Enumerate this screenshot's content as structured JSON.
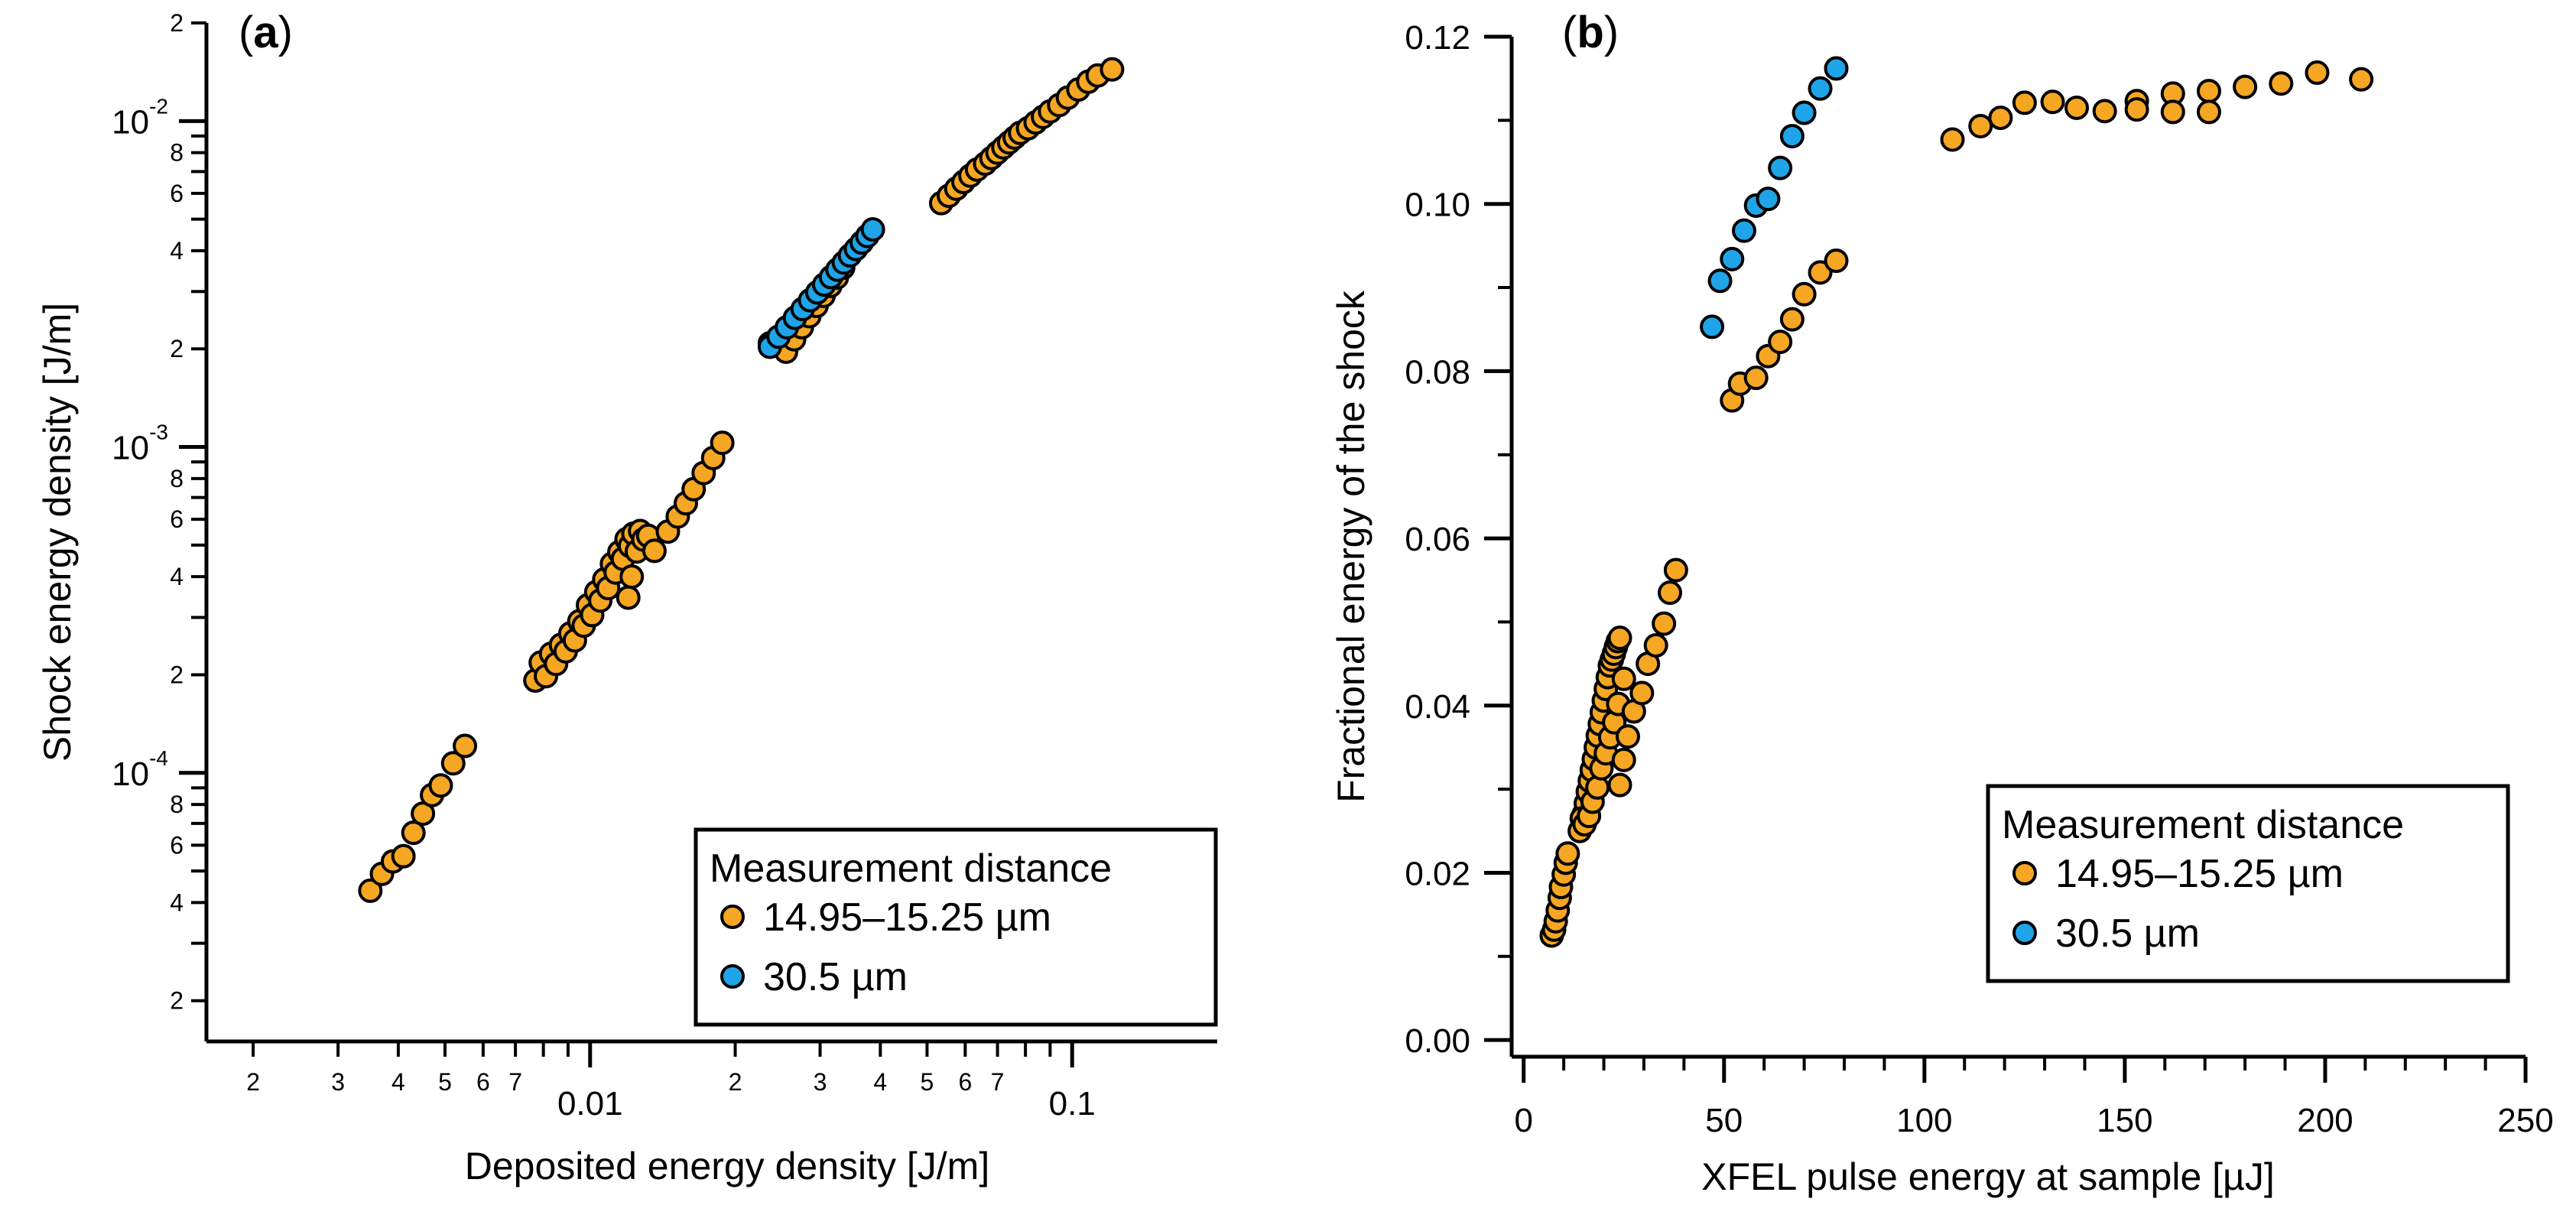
{
  "colors": {
    "orange": "#F5A623",
    "blue": "#1FA4E8",
    "stroke": "#000000"
  },
  "chart_data": [
    {
      "type": "scatter",
      "panel_label": "a",
      "xscale": "log",
      "yscale": "log",
      "xlabel": "Deposited energy density [J/m]",
      "ylabel": "Shock energy density [J/m]",
      "xlim": [
        0.0016,
        0.2
      ],
      "ylim": [
        1.5e-05,
        0.02
      ],
      "x_major_ticks": [
        {
          "value": 0.01,
          "label": "0.01"
        },
        {
          "value": 0.1,
          "label": "0.1"
        }
      ],
      "x_minor_ticks": [
        {
          "value": 0.002,
          "label": "2"
        },
        {
          "value": 0.003,
          "label": "3"
        },
        {
          "value": 0.004,
          "label": "4"
        },
        {
          "value": 0.005,
          "label": "5"
        },
        {
          "value": 0.006,
          "label": "6"
        },
        {
          "value": 0.007,
          "label": "7"
        },
        {
          "value": 0.008,
          "label": ""
        },
        {
          "value": 0.009,
          "label": ""
        },
        {
          "value": 0.02,
          "label": "2"
        },
        {
          "value": 0.03,
          "label": "3"
        },
        {
          "value": 0.04,
          "label": "4"
        },
        {
          "value": 0.05,
          "label": "5"
        },
        {
          "value": 0.06,
          "label": "6"
        },
        {
          "value": 0.07,
          "label": "7"
        },
        {
          "value": 0.08,
          "label": ""
        },
        {
          "value": 0.09,
          "label": ""
        }
      ],
      "y_major_ticks": [
        {
          "value": 0.0001,
          "base": "10",
          "exp": "-4"
        },
        {
          "value": 0.001,
          "base": "10",
          "exp": "-3"
        },
        {
          "value": 0.01,
          "base": "10",
          "exp": "-2"
        }
      ],
      "y_minor_ticks": [
        {
          "value": 2e-05,
          "label": "2"
        },
        {
          "value": 3e-05,
          "label": ""
        },
        {
          "value": 4e-05,
          "label": "4"
        },
        {
          "value": 5e-05,
          "label": ""
        },
        {
          "value": 6e-05,
          "label": "6"
        },
        {
          "value": 7e-05,
          "label": ""
        },
        {
          "value": 8e-05,
          "label": "8"
        },
        {
          "value": 9e-05,
          "label": ""
        },
        {
          "value": 0.0002,
          "label": "2"
        },
        {
          "value": 0.0003,
          "label": ""
        },
        {
          "value": 0.0004,
          "label": "4"
        },
        {
          "value": 0.0005,
          "label": ""
        },
        {
          "value": 0.0006,
          "label": "6"
        },
        {
          "value": 0.0007,
          "label": ""
        },
        {
          "value": 0.0008,
          "label": "8"
        },
        {
          "value": 0.0009,
          "label": ""
        },
        {
          "value": 0.002,
          "label": "2"
        },
        {
          "value": 0.003,
          "label": ""
        },
        {
          "value": 0.004,
          "label": "4"
        },
        {
          "value": 0.005,
          "label": ""
        },
        {
          "value": 0.006,
          "label": "6"
        },
        {
          "value": 0.007,
          "label": ""
        },
        {
          "value": 0.008,
          "label": "8"
        },
        {
          "value": 0.009,
          "label": ""
        },
        {
          "value": 0.02,
          "label": "2"
        }
      ],
      "legend": {
        "title": "Measurement distance",
        "position": "bottom-right"
      },
      "series": [
        {
          "name": "14.95–15.25 µm",
          "color": "#F5A623",
          "points": [
            [
              0.0035,
              4.35e-05
            ],
            [
              0.0037,
              4.9e-05
            ],
            [
              0.0039,
              5.35e-05
            ],
            [
              0.0041,
              5.55e-05
            ],
            [
              0.0043,
              6.55e-05
            ],
            [
              0.0045,
              7.5e-05
            ],
            [
              0.0047,
              8.55e-05
            ],
            [
              0.0049,
              9.15e-05
            ],
            [
              0.0052,
              0.000107
            ],
            [
              0.0055,
              0.000121
            ],
            [
              0.0077,
              0.000192
            ],
            [
              0.0079,
              0.000218
            ],
            [
              0.0081,
              0.000198
            ],
            [
              0.0083,
              0.000232
            ],
            [
              0.0085,
              0.000216
            ],
            [
              0.0087,
              0.000247
            ],
            [
              0.0089,
              0.000236
            ],
            [
              0.0091,
              0.000268
            ],
            [
              0.0093,
              0.000255
            ],
            [
              0.0095,
              0.000292
            ],
            [
              0.0097,
              0.000283
            ],
            [
              0.0099,
              0.000327
            ],
            [
              0.0101,
              0.000305
            ],
            [
              0.0103,
              0.000359
            ],
            [
              0.0105,
              0.000338
            ],
            [
              0.0107,
              0.000392
            ],
            [
              0.0109,
              0.000369
            ],
            [
              0.0111,
              0.000438
            ],
            [
              0.0113,
              0.000412
            ],
            [
              0.0115,
              0.000476
            ],
            [
              0.0117,
              0.000454
            ],
            [
              0.0119,
              0.000521
            ],
            [
              0.0121,
              0.000497
            ],
            [
              0.0123,
              0.000542
            ],
            [
              0.0125,
              0.000478
            ],
            [
              0.0127,
              0.000552
            ],
            [
              0.0129,
              0.00052
            ],
            [
              0.012,
              0.000345
            ],
            [
              0.0122,
              0.0004
            ],
            [
              0.0132,
              0.000534
            ],
            [
              0.0136,
              0.00048
            ],
            [
              0.0145,
              0.00055
            ],
            [
              0.0152,
              0.000612
            ],
            [
              0.0158,
              0.000672
            ],
            [
              0.0164,
              0.000742
            ],
            [
              0.0172,
              0.000832
            ],
            [
              0.018,
              0.000925
            ],
            [
              0.0188,
              0.00103
            ],
            [
              0.0236,
              0.00208
            ],
            [
              0.0255,
              0.00196
            ],
            [
              0.0265,
              0.00214
            ],
            [
              0.0275,
              0.00233
            ],
            [
              0.0285,
              0.00252
            ],
            [
              0.0295,
              0.00271
            ],
            [
              0.0305,
              0.00291
            ],
            [
              0.0315,
              0.00312
            ],
            [
              0.0325,
              0.00331
            ],
            [
              0.0335,
              0.00355
            ],
            [
              0.0535,
              0.0056
            ],
            [
              0.0555,
              0.0059
            ],
            [
              0.0575,
              0.0062
            ],
            [
              0.0595,
              0.0065
            ],
            [
              0.0615,
              0.0068
            ],
            [
              0.0635,
              0.0071
            ],
            [
              0.066,
              0.0074
            ],
            [
              0.068,
              0.0077
            ],
            [
              0.07,
              0.008
            ],
            [
              0.072,
              0.0083
            ],
            [
              0.074,
              0.0086
            ],
            [
              0.076,
              0.0089
            ],
            [
              0.078,
              0.0092
            ],
            [
              0.081,
              0.0095
            ],
            [
              0.084,
              0.0099
            ],
            [
              0.087,
              0.0103
            ],
            [
              0.09,
              0.0107
            ],
            [
              0.094,
              0.0112
            ],
            [
              0.098,
              0.0118
            ],
            [
              0.103,
              0.0125
            ],
            [
              0.108,
              0.0132
            ],
            [
              0.113,
              0.0138
            ],
            [
              0.121,
              0.0144
            ]
          ]
        },
        {
          "name": "30.5 µm",
          "color": "#1FA4E8",
          "points": [
            [
              0.0236,
              0.00203
            ],
            [
              0.0246,
              0.00218
            ],
            [
              0.0256,
              0.00233
            ],
            [
              0.0266,
              0.00249
            ],
            [
              0.0276,
              0.00265
            ],
            [
              0.0286,
              0.00282
            ],
            [
              0.0296,
              0.00298
            ],
            [
              0.0306,
              0.00315
            ],
            [
              0.0316,
              0.00332
            ],
            [
              0.0326,
              0.0035
            ],
            [
              0.0336,
              0.00368
            ],
            [
              0.0346,
              0.00387
            ],
            [
              0.0356,
              0.00405
            ],
            [
              0.0366,
              0.00424
            ],
            [
              0.0376,
              0.00444
            ],
            [
              0.0386,
              0.00465
            ]
          ]
        }
      ]
    },
    {
      "type": "scatter",
      "panel_label": "b",
      "xscale": "linear",
      "yscale": "linear",
      "xlabel": "XFEL pulse energy at sample [µJ]",
      "ylabel": "Fractional energy of the shock",
      "xlim": [
        -3,
        250
      ],
      "ylim": [
        -0.002,
        0.12
      ],
      "x_ticks": [
        {
          "value": 0,
          "label": "0"
        },
        {
          "value": 50,
          "label": "50"
        },
        {
          "value": 100,
          "label": "100"
        },
        {
          "value": 150,
          "label": "150"
        },
        {
          "value": 200,
          "label": "200"
        },
        {
          "value": 250,
          "label": "250"
        }
      ],
      "x_minor_ticks": [
        10,
        20,
        30,
        40,
        60,
        70,
        80,
        90,
        110,
        120,
        130,
        140,
        160,
        170,
        180,
        190,
        210,
        220,
        230,
        240
      ],
      "y_ticks": [
        {
          "value": 0,
          "label": "0.00"
        },
        {
          "value": 0.02,
          "label": "0.02"
        },
        {
          "value": 0.04,
          "label": "0.04"
        },
        {
          "value": 0.06,
          "label": "0.06"
        },
        {
          "value": 0.08,
          "label": "0.08"
        },
        {
          "value": 0.1,
          "label": "0.10"
        },
        {
          "value": 0.12,
          "label": "0.12"
        }
      ],
      "y_minor_ticks": [
        0.01,
        0.03,
        0.05,
        0.07,
        0.09,
        0.11
      ],
      "legend": {
        "title": "Measurement distance",
        "position": "lower-right"
      },
      "series": [
        {
          "name": "14.95–15.25 µm",
          "color": "#F5A623",
          "points": [
            [
              7,
              0.0125
            ],
            [
              7.6,
              0.0132
            ],
            [
              8,
              0.0142
            ],
            [
              8.5,
              0.0155
            ],
            [
              9,
              0.017
            ],
            [
              9.3,
              0.0183
            ],
            [
              10,
              0.0198
            ],
            [
              10.5,
              0.0212
            ],
            [
              11,
              0.0223
            ],
            [
              14,
              0.025
            ],
            [
              15,
              0.027
            ],
            [
              15.5,
              0.0283
            ],
            [
              16,
              0.0297
            ],
            [
              16.5,
              0.031
            ],
            [
              17,
              0.0323
            ],
            [
              17.5,
              0.0336
            ],
            [
              18,
              0.035
            ],
            [
              18.5,
              0.0364
            ],
            [
              19,
              0.0378
            ],
            [
              19.5,
              0.0392
            ],
            [
              20,
              0.0406
            ],
            [
              20.5,
              0.042
            ],
            [
              21,
              0.0434
            ],
            [
              21.5,
              0.0448
            ],
            [
              22,
              0.0455
            ],
            [
              22.5,
              0.0462
            ],
            [
              23,
              0.047
            ],
            [
              23.5,
              0.0477
            ],
            [
              24,
              0.0481
            ],
            [
              14.5,
              0.0265
            ],
            [
              15.2,
              0.0258
            ],
            [
              16.3,
              0.0268
            ],
            [
              17.2,
              0.0285
            ],
            [
              18.4,
              0.0302
            ],
            [
              19.4,
              0.0325
            ],
            [
              20.5,
              0.0343
            ],
            [
              21.6,
              0.0362
            ],
            [
              22.6,
              0.038
            ],
            [
              23.6,
              0.0402
            ],
            [
              25,
              0.0432
            ],
            [
              24,
              0.0305
            ],
            [
              25,
              0.0335
            ],
            [
              26,
              0.0363
            ],
            [
              27.5,
              0.0393
            ],
            [
              29.5,
              0.0415
            ],
            [
              31,
              0.045
            ],
            [
              33,
              0.0472
            ],
            [
              35,
              0.0498
            ],
            [
              36.5,
              0.0535
            ],
            [
              38,
              0.0562
            ],
            [
              52,
              0.0765
            ],
            [
              54,
              0.0785
            ],
            [
              58,
              0.0792
            ],
            [
              61,
              0.0818
            ],
            [
              64,
              0.0835
            ],
            [
              67,
              0.0862
            ],
            [
              70,
              0.0892
            ],
            [
              74,
              0.0918
            ],
            [
              78,
              0.0932
            ],
            [
              107,
              0.1077
            ],
            [
              114,
              0.1093
            ],
            [
              119,
              0.1103
            ],
            [
              125,
              0.1121
            ],
            [
              132,
              0.1122
            ],
            [
              138,
              0.1115
            ],
            [
              145,
              0.1111
            ],
            [
              153,
              0.1123
            ],
            [
              153,
              0.1113
            ],
            [
              162,
              0.1132
            ],
            [
              162,
              0.111
            ],
            [
              171,
              0.1135
            ],
            [
              171,
              0.111
            ],
            [
              180,
              0.114
            ],
            [
              189,
              0.1144
            ],
            [
              198,
              0.1157
            ],
            [
              209,
              0.1149
            ]
          ]
        },
        {
          "name": "30.5 µm",
          "color": "#1FA4E8",
          "points": [
            [
              47,
              0.0853
            ],
            [
              49,
              0.0908
            ],
            [
              52,
              0.0934
            ],
            [
              55,
              0.0968
            ],
            [
              58,
              0.0998
            ],
            [
              61,
              0.1006
            ],
            [
              64,
              0.1043
            ],
            [
              67,
              0.1081
            ],
            [
              70,
              0.1109
            ],
            [
              74,
              0.1138
            ],
            [
              78,
              0.1162
            ]
          ]
        }
      ]
    }
  ]
}
